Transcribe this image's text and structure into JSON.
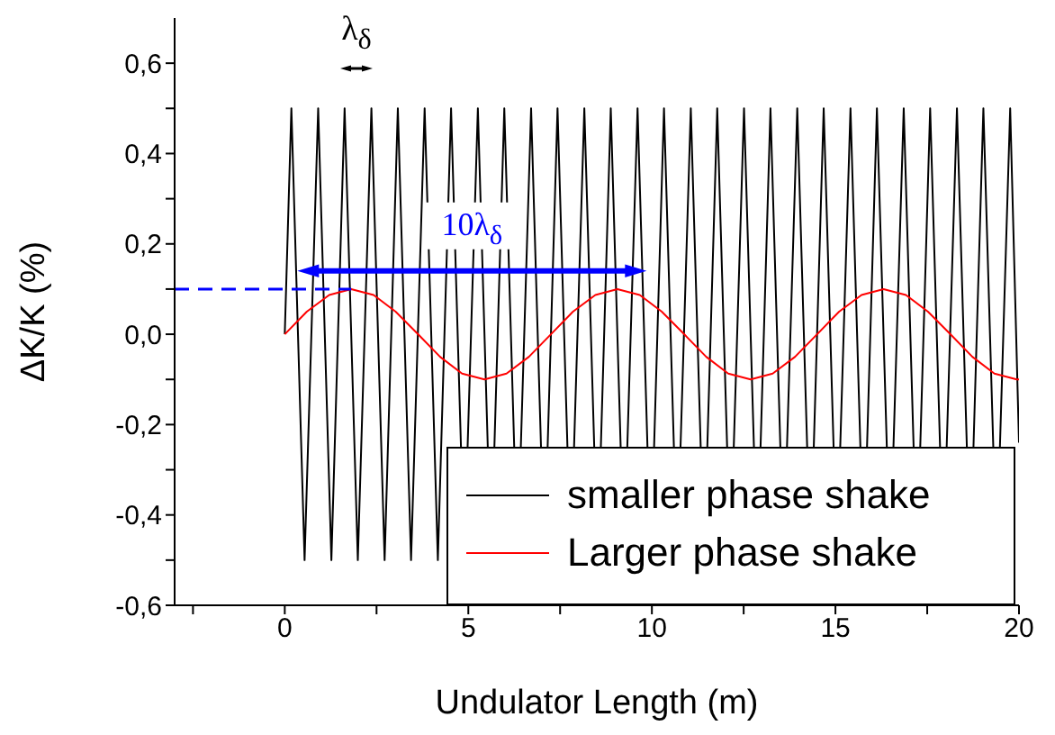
{
  "chart_data": {
    "type": "line",
    "xlabel": "Undulator Length (m)",
    "ylabel": "ΔK/K (%)",
    "xlim": [
      -3,
      20
    ],
    "xticks": [
      {
        "value": -2.5,
        "label": null
      },
      0,
      {
        "value": 2.5,
        "label": null
      },
      5,
      {
        "value": 7.5,
        "label": null
      },
      10,
      {
        "value": 12.5,
        "label": null
      },
      15,
      {
        "value": 17.5,
        "label": null
      },
      20
    ],
    "ylim": [
      -0.6,
      0.7
    ],
    "yticks": [
      {
        "value": -0.6,
        "label": "-0,6"
      },
      {
        "value": -0.5,
        "label": null
      },
      {
        "value": -0.4,
        "label": "-0,4"
      },
      {
        "value": -0.3,
        "label": null
      },
      {
        "value": -0.2,
        "label": "-0,2"
      },
      {
        "value": -0.1,
        "label": null
      },
      {
        "value": 0,
        "label": "0,0"
      },
      {
        "value": 0.1,
        "label": null
      },
      {
        "value": 0.2,
        "label": "0,2"
      },
      {
        "value": 0.3,
        "label": null
      },
      {
        "value": 0.4,
        "label": "0,4"
      },
      {
        "value": 0.5,
        "label": null
      },
      {
        "value": 0.6,
        "label": "0,6"
      }
    ],
    "grid": false,
    "legend": "bottom right",
    "marker": "none",
    "line_style": "solid",
    "series": [
      {
        "name": "smaller phase shake",
        "color": "#000000",
        "x": [
          0,
          0.18,
          0.54,
          0.91,
          1.27,
          1.63,
          1.99,
          2.36,
          2.72,
          3.08,
          3.44,
          3.81,
          4.17,
          4.53,
          4.8,
          4.89,
          4.98,
          5.26,
          5.53,
          5.62,
          5.71,
          5.98,
          6.25,
          6.34,
          6.43,
          6.71,
          6.98,
          7.07,
          7.16,
          7.43,
          7.7,
          7.79,
          7.88,
          8.16,
          8.43,
          8.52,
          8.61,
          8.88,
          9.15,
          9.24,
          9.33,
          9.61,
          9.88,
          9.97,
          10.06,
          10.33,
          10.6,
          10.69,
          10.78,
          11.06,
          11.33,
          11.42,
          11.51,
          11.78,
          12.05,
          12.14,
          12.23,
          12.51,
          12.78,
          12.87,
          12.96,
          13.23,
          13.5,
          13.59,
          13.68,
          13.96,
          14.23,
          14.32,
          14.41,
          14.68,
          14.95,
          15.04,
          15.13,
          15.41,
          15.68,
          15.77,
          15.86,
          16.13,
          16.4,
          16.49,
          16.58,
          16.86,
          17.13,
          17.22,
          17.31,
          17.58,
          17.85,
          17.94,
          18.03,
          18.31,
          18.58,
          18.67,
          18.76,
          19.03,
          19.3,
          19.39,
          19.48,
          19.76,
          20
        ],
        "values": [
          0,
          0.5,
          -0.5,
          0.5,
          -0.5,
          0.5,
          -0.5,
          0.5,
          -0.5,
          0.5,
          -0.5,
          0.5,
          -0.5,
          0.5,
          -0.25,
          null,
          -0.25,
          0.5,
          -0.25,
          null,
          -0.25,
          0.5,
          -0.25,
          null,
          -0.25,
          0.5,
          -0.25,
          null,
          -0.25,
          0.5,
          -0.25,
          null,
          -0.25,
          0.5,
          -0.25,
          null,
          -0.25,
          0.5,
          -0.25,
          null,
          -0.25,
          0.5,
          -0.25,
          null,
          -0.25,
          0.5,
          -0.25,
          null,
          -0.25,
          0.5,
          -0.25,
          null,
          -0.25,
          0.5,
          -0.25,
          null,
          -0.25,
          0.5,
          -0.25,
          null,
          -0.25,
          0.5,
          -0.25,
          null,
          -0.25,
          0.5,
          -0.25,
          null,
          -0.25,
          0.5,
          -0.25,
          null,
          -0.25,
          0.5,
          -0.25,
          null,
          -0.25,
          0.5,
          -0.25,
          null,
          -0.25,
          0.5,
          -0.25,
          null,
          -0.25,
          0.5,
          -0.25,
          null,
          -0.25,
          0.5,
          -0.25,
          null,
          -0.25,
          0.5,
          -0.25,
          null,
          -0.25,
          0.5,
          -0.24
        ]
      },
      {
        "name": "Larger phase shake",
        "color": "#ff0000",
        "x": [
          0,
          0.6,
          1.21,
          1.81,
          2.42,
          3.02,
          3.63,
          4.23,
          4.83,
          5.44,
          6.04,
          6.65,
          7.25,
          7.85,
          8.46,
          9.06,
          9.67,
          10.27,
          10.88,
          11.48,
          12.08,
          12.69,
          13.29,
          13.9,
          14.5,
          15.1,
          15.71,
          16.31,
          16.92,
          17.52,
          18.13,
          18.73,
          19.33,
          19.94,
          20
        ],
        "values": [
          0,
          0.05,
          0.087,
          0.1,
          0.087,
          0.05,
          0,
          -0.05,
          -0.087,
          -0.1,
          -0.087,
          -0.05,
          0,
          0.05,
          0.087,
          0.1,
          0.087,
          0.05,
          0,
          -0.05,
          -0.087,
          -0.1,
          -0.087,
          -0.05,
          0,
          0.05,
          0.087,
          0.1,
          0.087,
          0.05,
          0,
          -0.05,
          -0.087,
          -0.1,
          -0.1
        ]
      },
      {
        "color": "#0000ff",
        "line_style": "dashed",
        "x": [
          -3,
          1.81
        ],
        "values": [
          0.1,
          0.1
        ]
      }
    ],
    "annotations": [
      "λ$_{δ}$",
      {
        "text": "10λ$_{δ}$",
        "x": 5.1,
        "y": 0.22
      }
    ]
  }
}
